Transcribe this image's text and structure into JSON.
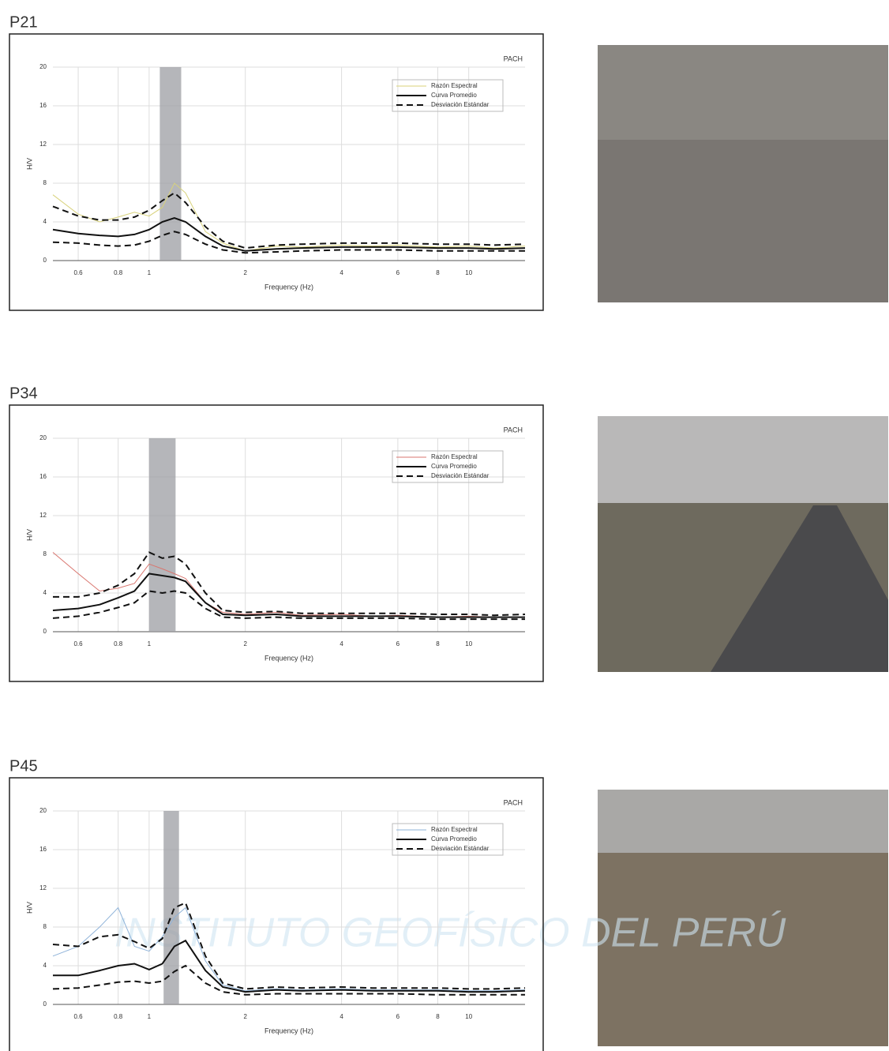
{
  "watermark": "INSTITUTO GEOFÍSICO DEL PERÚ",
  "chart_data": [
    {
      "type": "line",
      "title": "P21",
      "tag": "PACH",
      "xlabel": "Frequency (Hz)",
      "ylabel": "H/V",
      "xscale": "log",
      "xlim": [
        0.5,
        15
      ],
      "xticks": [
        0.6,
        0.8,
        1,
        2,
        4,
        6,
        8,
        10
      ],
      "ylim": [
        0,
        20
      ],
      "yticks": [
        0,
        4,
        8,
        12,
        16,
        20
      ],
      "grid": true,
      "band": [
        1.08,
        1.26
      ],
      "x": [
        0.5,
        0.6,
        0.7,
        0.8,
        0.9,
        1.0,
        1.1,
        1.2,
        1.3,
        1.5,
        1.7,
        2,
        2.5,
        3,
        4,
        5,
        6,
        8,
        10,
        12,
        15
      ],
      "series": [
        {
          "name": "Razón Espectral",
          "color": "#d8d27a",
          "dash": "none",
          "values": [
            6.8,
            4.8,
            4.0,
            4.5,
            5.0,
            4.6,
            5.5,
            8.0,
            7.0,
            3.0,
            1.8,
            1.0,
            1.5,
            1.4,
            1.6,
            1.5,
            1.6,
            1.4,
            1.5,
            1.3,
            1.5
          ]
        },
        {
          "name": "Curva Promedio",
          "color": "#111111",
          "dash": "none",
          "values": [
            3.2,
            2.8,
            2.6,
            2.5,
            2.7,
            3.2,
            4.0,
            4.4,
            4.0,
            2.5,
            1.5,
            1.0,
            1.2,
            1.3,
            1.4,
            1.4,
            1.4,
            1.3,
            1.3,
            1.2,
            1.3
          ]
        },
        {
          "name": "Desviación Estándar",
          "color": "#111111",
          "dash": "8 5",
          "values": [
            5.6,
            4.6,
            4.2,
            4.2,
            4.5,
            5.2,
            6.2,
            7.0,
            6.0,
            3.5,
            2.0,
            1.3,
            1.6,
            1.7,
            1.8,
            1.8,
            1.8,
            1.7,
            1.7,
            1.6,
            1.7
          ],
          "lower": [
            1.9,
            1.8,
            1.6,
            1.5,
            1.6,
            2.0,
            2.6,
            3.0,
            2.7,
            1.7,
            1.1,
            0.8,
            0.9,
            1.0,
            1.1,
            1.1,
            1.1,
            1.0,
            1.0,
            1.0,
            1.0
          ]
        }
      ]
    },
    {
      "type": "line",
      "title": "P34",
      "tag": "PACH",
      "xlabel": "Frequency (Hz)",
      "ylabel": "H/V",
      "xscale": "log",
      "xlim": [
        0.5,
        15
      ],
      "xticks": [
        0.6,
        0.8,
        1,
        2,
        4,
        6,
        8,
        10
      ],
      "ylim": [
        0,
        20
      ],
      "yticks": [
        0,
        4,
        8,
        12,
        16,
        20
      ],
      "grid": true,
      "band": [
        1.0,
        1.21
      ],
      "x": [
        0.5,
        0.6,
        0.7,
        0.8,
        0.9,
        1.0,
        1.1,
        1.2,
        1.3,
        1.5,
        1.7,
        2,
        2.5,
        3,
        4,
        5,
        6,
        8,
        10,
        12,
        15
      ],
      "series": [
        {
          "name": "Razón Espectral",
          "color": "#d9766f",
          "dash": "none",
          "values": [
            8.2,
            6.0,
            4.2,
            4.5,
            5.0,
            7.0,
            6.5,
            6.0,
            5.5,
            3.0,
            2.0,
            1.8,
            2.0,
            1.7,
            1.8,
            1.6,
            1.7,
            1.5,
            1.6,
            1.5,
            1.5
          ]
        },
        {
          "name": "Curva Promedio",
          "color": "#111111",
          "dash": "none",
          "values": [
            2.2,
            2.4,
            2.8,
            3.5,
            4.2,
            6.0,
            5.8,
            5.6,
            5.2,
            3.0,
            1.8,
            1.7,
            1.8,
            1.6,
            1.6,
            1.6,
            1.6,
            1.5,
            1.5,
            1.5,
            1.5
          ]
        },
        {
          "name": "Desviación Estándar",
          "color": "#111111",
          "dash": "8 5",
          "values": [
            3.6,
            3.6,
            4.0,
            4.8,
            6.0,
            8.2,
            7.6,
            7.8,
            7.0,
            4.0,
            2.2,
            2.0,
            2.1,
            1.9,
            1.9,
            1.9,
            1.9,
            1.8,
            1.8,
            1.7,
            1.8
          ],
          "lower": [
            1.4,
            1.6,
            2.0,
            2.5,
            3.0,
            4.2,
            4.0,
            4.2,
            4.0,
            2.4,
            1.5,
            1.4,
            1.5,
            1.4,
            1.4,
            1.4,
            1.4,
            1.3,
            1.3,
            1.3,
            1.3
          ]
        }
      ]
    },
    {
      "type": "line",
      "title": "P45",
      "tag": "PACH",
      "xlabel": "Frequency (Hz)",
      "ylabel": "H/V",
      "xscale": "log",
      "xlim": [
        0.5,
        15
      ],
      "xticks": [
        0.6,
        0.8,
        1,
        2,
        4,
        6,
        8,
        10
      ],
      "ylim": [
        0,
        20
      ],
      "yticks": [
        0,
        4,
        8,
        12,
        16,
        20
      ],
      "grid": true,
      "band": [
        1.11,
        1.24
      ],
      "x": [
        0.5,
        0.6,
        0.7,
        0.8,
        0.9,
        1.0,
        1.1,
        1.2,
        1.3,
        1.5,
        1.7,
        2,
        2.5,
        3,
        4,
        5,
        6,
        8,
        10,
        12,
        15
      ],
      "series": [
        {
          "name": "Razón Espectral",
          "color": "#8fb3d9",
          "dash": "none",
          "values": [
            5.0,
            6.0,
            8.0,
            10.0,
            6.0,
            5.5,
            7.0,
            9.0,
            10.0,
            4.5,
            2.0,
            1.4,
            1.6,
            1.5,
            1.6,
            1.5,
            1.5,
            1.5,
            1.4,
            1.4,
            1.5
          ]
        },
        {
          "name": "Curva Promedio",
          "color": "#111111",
          "dash": "none",
          "values": [
            3.0,
            3.0,
            3.5,
            4.0,
            4.2,
            3.6,
            4.2,
            6.0,
            6.6,
            3.5,
            1.8,
            1.3,
            1.5,
            1.4,
            1.5,
            1.4,
            1.4,
            1.4,
            1.3,
            1.3,
            1.4
          ]
        },
        {
          "name": "Desviación Estándar",
          "color": "#111111",
          "dash": "8 5",
          "values": [
            6.2,
            6.0,
            7.0,
            7.2,
            6.5,
            5.8,
            6.8,
            10.0,
            10.5,
            5.0,
            2.2,
            1.6,
            1.8,
            1.7,
            1.8,
            1.7,
            1.7,
            1.7,
            1.6,
            1.6,
            1.7
          ],
          "lower": [
            1.6,
            1.7,
            2.0,
            2.3,
            2.4,
            2.2,
            2.4,
            3.4,
            4.0,
            2.2,
            1.3,
            1.0,
            1.1,
            1.1,
            1.1,
            1.1,
            1.1,
            1.0,
            1.0,
            1.0,
            1.0
          ]
        }
      ]
    }
  ]
}
